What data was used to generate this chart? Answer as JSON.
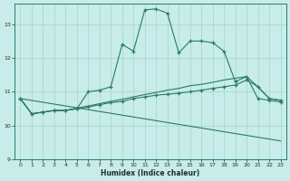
{
  "xlabel": "Humidex (Indice chaleur)",
  "bg_color": "#c8ece9",
  "grid_color": "#a8d8d4",
  "line_color": "#2a7a68",
  "xlim": [
    -0.5,
    23.5
  ],
  "ylim": [
    9,
    13.6
  ],
  "yticks": [
    9,
    10,
    11,
    12,
    13
  ],
  "xticks": [
    0,
    1,
    2,
    3,
    4,
    5,
    6,
    7,
    8,
    9,
    10,
    11,
    12,
    13,
    14,
    15,
    16,
    17,
    18,
    19,
    20,
    21,
    22,
    23
  ],
  "series1_x": [
    0,
    1,
    2,
    3,
    4,
    5,
    6,
    7,
    8,
    9,
    10,
    11,
    12,
    13,
    14,
    15,
    16,
    17,
    18,
    19,
    20,
    21,
    22,
    23
  ],
  "series1_y": [
    10.8,
    10.35,
    10.4,
    10.45,
    10.45,
    10.5,
    11.0,
    11.05,
    11.15,
    12.4,
    12.2,
    13.42,
    13.45,
    13.32,
    12.15,
    12.5,
    12.5,
    12.45,
    12.2,
    11.3,
    11.45,
    10.8,
    10.75,
    10.7
  ],
  "series2_x": [
    0,
    1,
    2,
    3,
    4,
    5,
    6,
    7,
    8,
    9,
    10,
    11,
    12,
    13,
    14,
    15,
    16,
    17,
    18,
    19,
    20,
    21,
    22,
    23
  ],
  "series2_y": [
    10.8,
    10.35,
    10.4,
    10.45,
    10.45,
    10.5,
    10.55,
    10.62,
    10.68,
    10.72,
    10.8,
    10.85,
    10.9,
    10.93,
    10.96,
    11.0,
    11.05,
    11.1,
    11.15,
    11.2,
    11.35,
    11.15,
    10.8,
    10.75
  ],
  "series3_x": [
    0,
    1,
    2,
    3,
    4,
    5,
    6,
    7,
    8,
    9,
    10,
    11,
    12,
    13,
    14,
    15,
    16,
    17,
    18,
    19,
    20,
    21,
    22,
    23
  ],
  "series3_y": [
    10.8,
    10.35,
    10.4,
    10.45,
    10.45,
    10.52,
    10.58,
    10.65,
    10.72,
    10.78,
    10.85,
    10.92,
    10.98,
    11.05,
    11.1,
    11.18,
    11.22,
    11.28,
    11.35,
    11.4,
    11.45,
    11.15,
    10.8,
    10.75
  ],
  "series4_x": [
    0,
    23
  ],
  "series4_y": [
    10.8,
    9.55
  ]
}
